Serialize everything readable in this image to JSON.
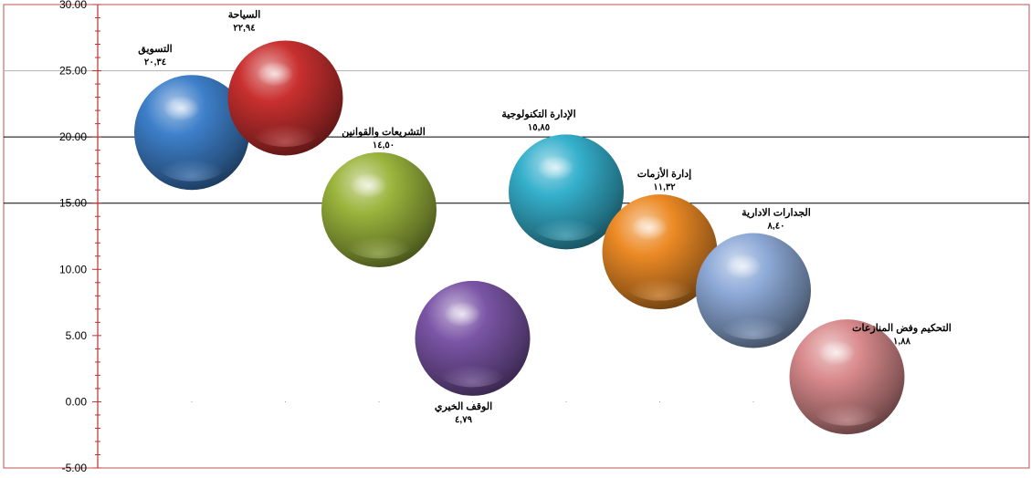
{
  "chart_data": {
    "type": "scatter",
    "subtype": "3d-bubble",
    "title": "",
    "xlabel": "",
    "ylabel": "",
    "ylim": [
      -5,
      30
    ],
    "y_ticks": [
      "-5.00",
      "0.00",
      "5.00",
      "10.00",
      "15.00",
      "20.00",
      "25.00",
      "30.00"
    ],
    "grid": true,
    "legend": "none",
    "series": [
      {
        "name": "التسويق",
        "value_label": "٢٠,٣٤",
        "x": 1,
        "y": 20.34,
        "color": "#3d7fc9"
      },
      {
        "name": "السياحة",
        "value_label": "٢٢,٩٤",
        "x": 2,
        "y": 22.94,
        "color": "#c8302f"
      },
      {
        "name": "التشريعات والقوانين",
        "value_label": "١٤,٥٠",
        "x": 3,
        "y": 14.5,
        "color": "#9ab43c"
      },
      {
        "name": "الوقف الخيري",
        "value_label": "٤,٧٩",
        "x": 4,
        "y": 4.79,
        "color": "#7b55a6"
      },
      {
        "name": "الإدارة التكنولوجية",
        "value_label": "١٥,٨٥",
        "x": 5,
        "y": 15.85,
        "color": "#35b0cc"
      },
      {
        "name": "إدارة الأزمات",
        "value_label": "١١,٣٢",
        "x": 6,
        "y": 11.32,
        "color": "#ec8a25"
      },
      {
        "name": "الجدارات الادارية",
        "value_label": "٨,٤٠",
        "x": 7,
        "y": 8.4,
        "color": "#8eaad8"
      },
      {
        "name": "التحكيم وفض المنازعات",
        "value_label": "١,٨٨",
        "x": 8,
        "y": 1.88,
        "color": "#d98a8c"
      }
    ]
  }
}
